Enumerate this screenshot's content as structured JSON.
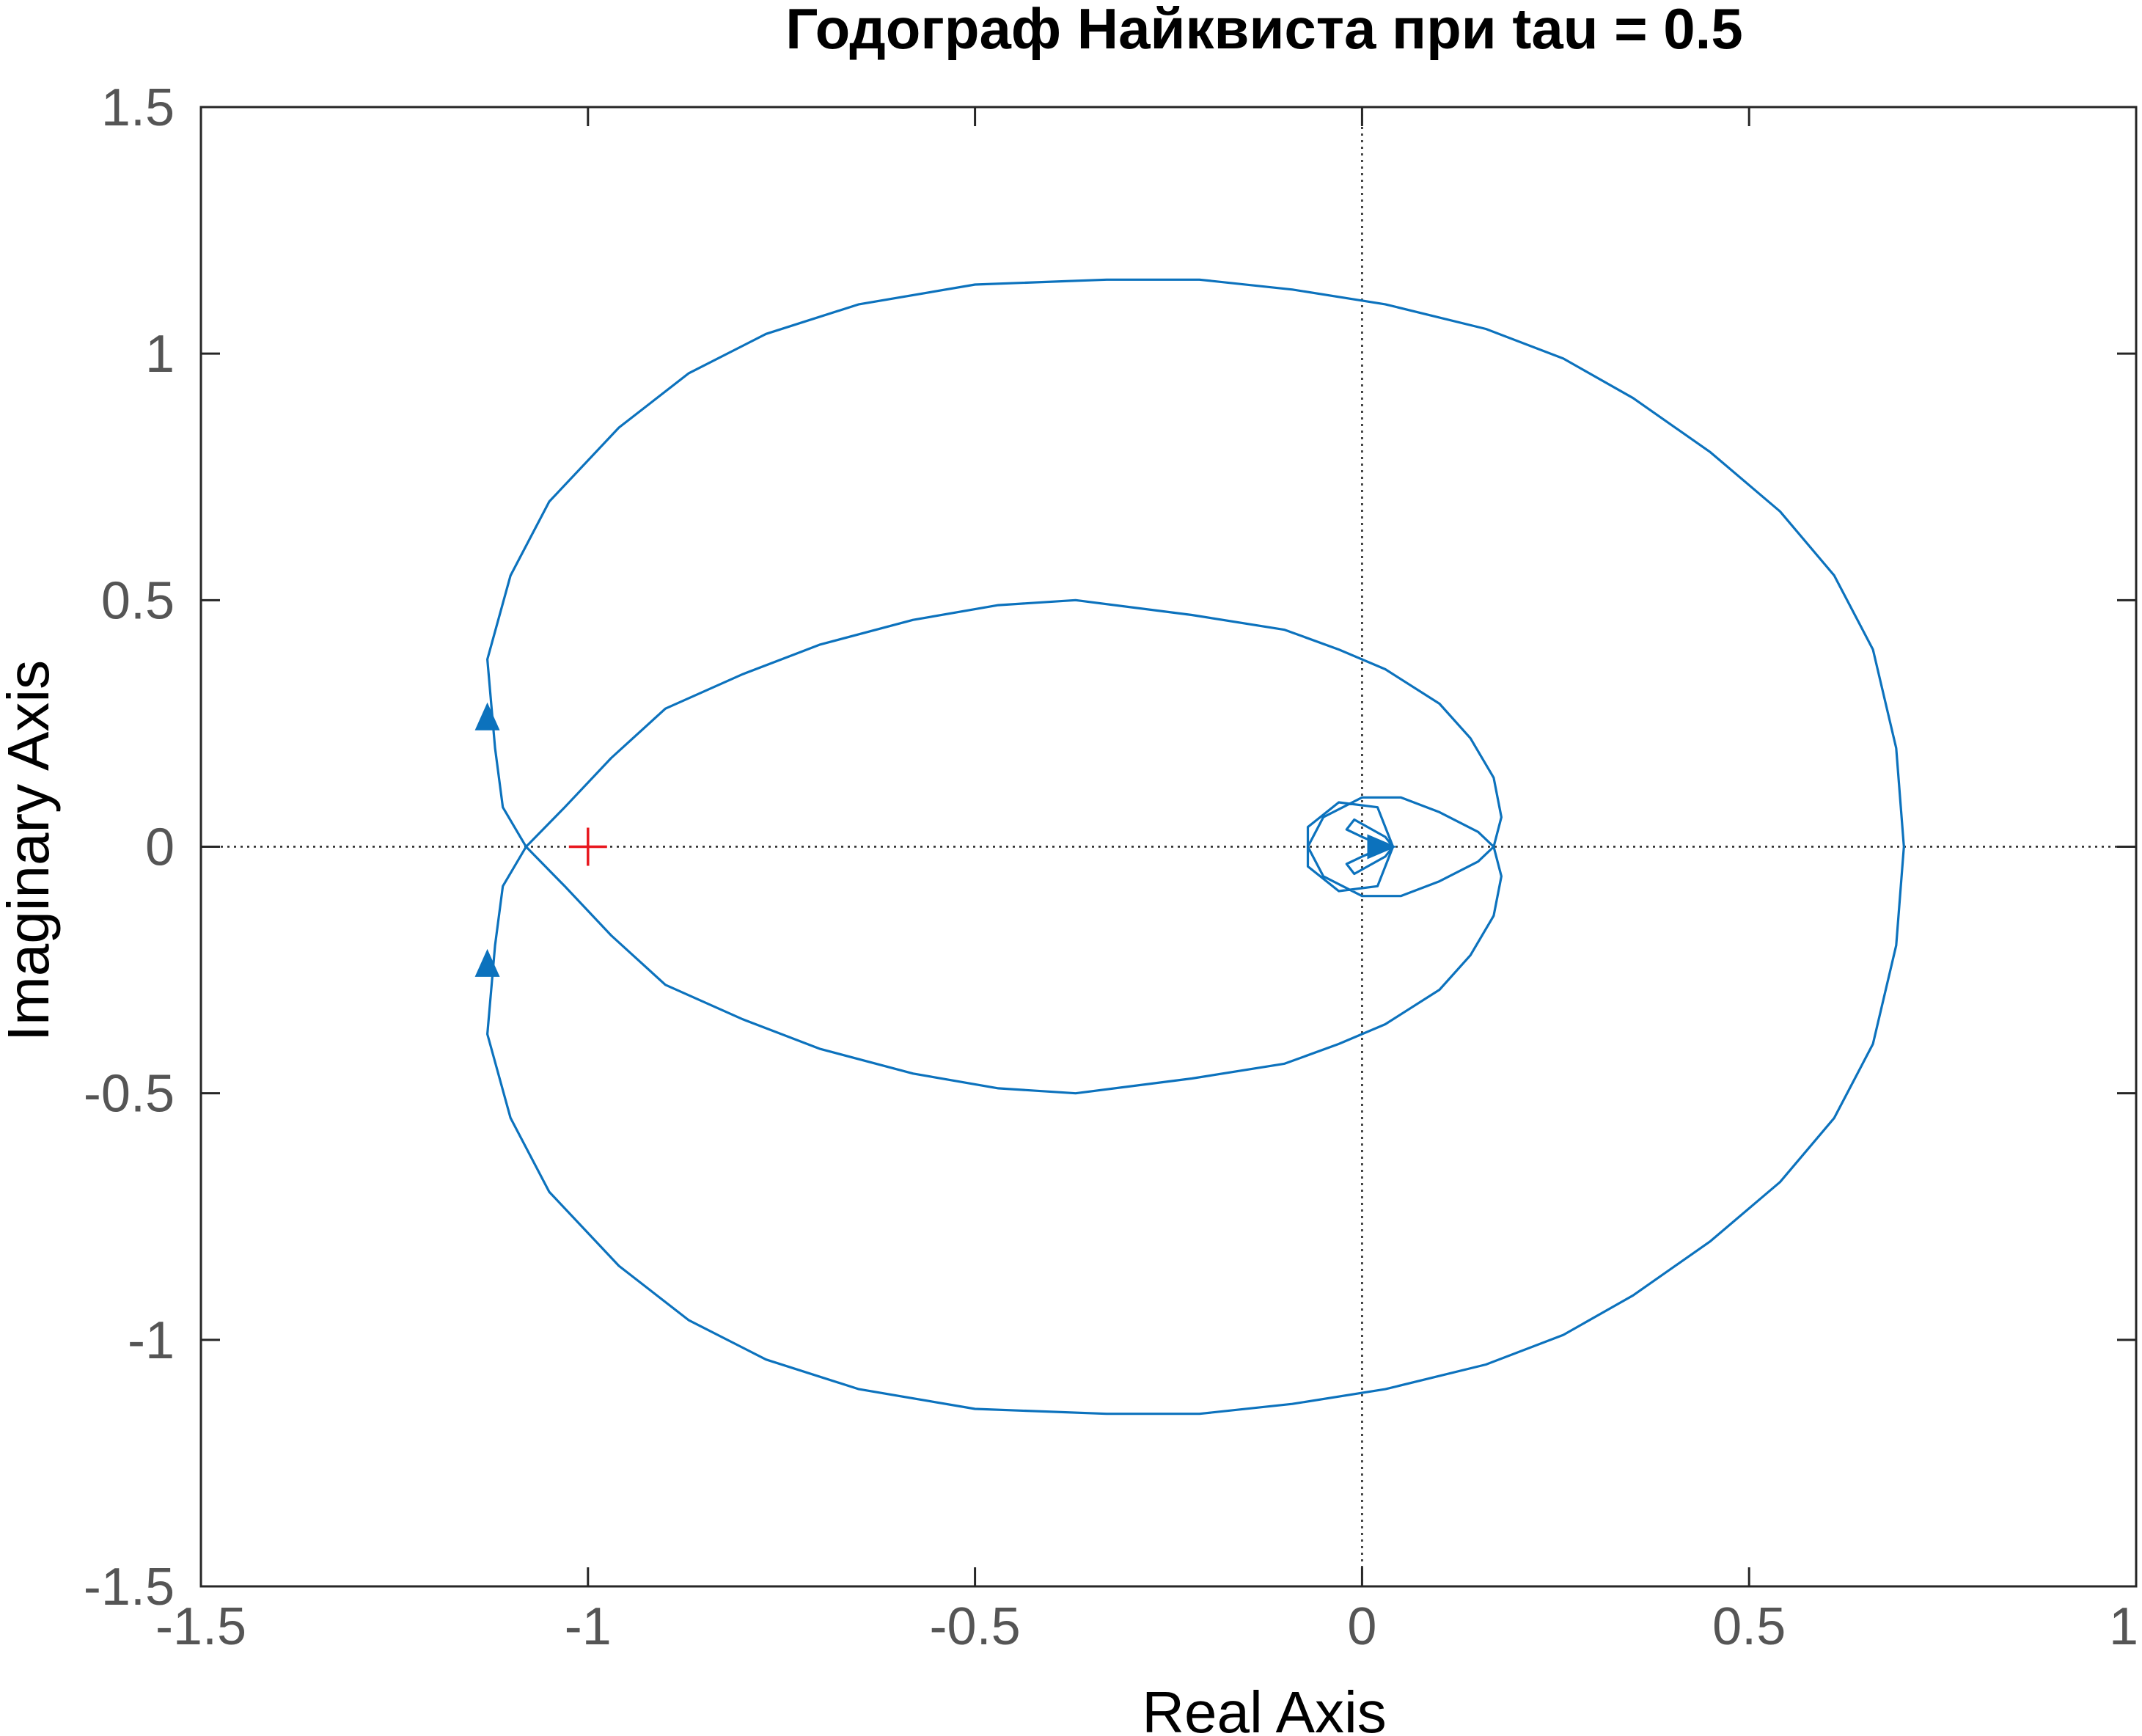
{
  "chart_data": {
    "type": "line",
    "title": "Годограф Найквиста при tau = 0.5",
    "xlabel": "Real Axis",
    "ylabel": "Imaginary Axis",
    "xlim": [
      -1.5,
      1
    ],
    "ylim": [
      -1.5,
      1.5
    ],
    "xticks": [
      -1.5,
      -1,
      -0.5,
      0,
      0.5,
      1
    ],
    "xtick_labels": [
      "-1.5",
      "-1",
      "-0.5",
      "0",
      "0.5",
      "1"
    ],
    "yticks": [
      -1.5,
      -1,
      -0.5,
      0,
      0.5,
      1,
      1.5
    ],
    "ytick_labels": [
      "-1.5",
      "-1",
      "-0.5",
      "0",
      "0.5",
      "1",
      "1.5"
    ],
    "grid": false,
    "reference_lines": {
      "x": 0,
      "y": 0,
      "style": "dotted"
    },
    "critical_point": {
      "x": -1,
      "y": 0,
      "marker": "+",
      "color": "#e8171e"
    },
    "line_color": "#0c72bd",
    "series": [
      {
        "curve": [
          [
            0.03,
            0
          ],
          [
            0.0,
            0.02
          ],
          [
            -0.02,
            0.035
          ],
          [
            -0.01,
            0.055
          ],
          [
            0.03,
            0.02
          ],
          [
            0.04,
            0
          ],
          [
            0.02,
            0.08
          ],
          [
            -0.03,
            0.09
          ],
          [
            -0.07,
            0.04
          ],
          [
            -0.07,
            0
          ],
          [
            -0.05,
            -0.06
          ],
          [
            0.0,
            -0.1
          ],
          [
            0.05,
            -0.1
          ],
          [
            0.1,
            -0.07
          ],
          [
            0.15,
            -0.03
          ],
          [
            0.17,
            0
          ],
          [
            0.18,
            0.06
          ],
          [
            0.17,
            0.14
          ],
          [
            0.14,
            0.22
          ],
          [
            0.1,
            0.29
          ],
          [
            0.03,
            0.36
          ],
          [
            -0.03,
            0.4
          ],
          [
            -0.1,
            0.44
          ],
          [
            -0.22,
            0.47
          ],
          [
            -0.37,
            0.5
          ],
          [
            -0.47,
            0.49
          ],
          [
            -0.58,
            0.46
          ],
          [
            -0.7,
            0.41
          ],
          [
            -0.8,
            0.35
          ],
          [
            -0.9,
            0.28
          ],
          [
            -0.97,
            0.18
          ],
          [
            -1.03,
            0.08
          ],
          [
            -1.08,
            0
          ],
          [
            -1.11,
            -0.08
          ],
          [
            -1.12,
            -0.2
          ],
          [
            -1.13,
            -0.38
          ],
          [
            -1.1,
            -0.55
          ],
          [
            -1.05,
            -0.7
          ],
          [
            -0.96,
            -0.85
          ],
          [
            -0.87,
            -0.96
          ],
          [
            -0.77,
            -1.04
          ],
          [
            -0.65,
            -1.1
          ],
          [
            -0.5,
            -1.14
          ],
          [
            -0.33,
            -1.15
          ],
          [
            -0.21,
            -1.15
          ],
          [
            -0.09,
            -1.13
          ],
          [
            0.03,
            -1.1
          ],
          [
            0.16,
            -1.05
          ],
          [
            0.26,
            -0.99
          ],
          [
            0.35,
            -0.91
          ],
          [
            0.45,
            -0.8
          ],
          [
            0.54,
            -0.68
          ],
          [
            0.61,
            -0.55
          ],
          [
            0.66,
            -0.4
          ],
          [
            0.69,
            -0.2
          ],
          [
            0.7,
            0
          ],
          [
            0.69,
            0.2
          ],
          [
            0.66,
            0.4
          ],
          [
            0.61,
            0.55
          ],
          [
            0.54,
            0.68
          ],
          [
            0.45,
            0.8
          ],
          [
            0.35,
            0.91
          ],
          [
            0.26,
            0.99
          ],
          [
            0.16,
            1.05
          ],
          [
            0.03,
            1.1
          ],
          [
            -0.09,
            1.13
          ],
          [
            -0.21,
            1.15
          ],
          [
            -0.33,
            1.15
          ],
          [
            -0.5,
            1.14
          ],
          [
            -0.65,
            1.1
          ],
          [
            -0.77,
            1.04
          ],
          [
            -0.87,
            0.96
          ],
          [
            -0.96,
            0.85
          ],
          [
            -1.05,
            0.7
          ],
          [
            -1.1,
            0.55
          ],
          [
            -1.13,
            0.38
          ],
          [
            -1.12,
            0.2
          ],
          [
            -1.11,
            0.08
          ],
          [
            -1.08,
            0
          ],
          [
            -1.03,
            -0.08
          ],
          [
            -0.97,
            -0.18
          ],
          [
            -0.9,
            -0.28
          ],
          [
            -0.8,
            -0.35
          ],
          [
            -0.7,
            -0.41
          ],
          [
            -0.58,
            -0.46
          ],
          [
            -0.47,
            -0.49
          ],
          [
            -0.37,
            -0.5
          ],
          [
            -0.22,
            -0.47
          ],
          [
            -0.1,
            -0.44
          ],
          [
            -0.03,
            -0.4
          ],
          [
            0.03,
            -0.36
          ],
          [
            0.1,
            -0.29
          ],
          [
            0.14,
            -0.22
          ],
          [
            0.17,
            -0.14
          ],
          [
            0.18,
            -0.06
          ],
          [
            0.17,
            0
          ],
          [
            0.15,
            0.03
          ],
          [
            0.1,
            0.07
          ],
          [
            0.05,
            0.1
          ],
          [
            0.0,
            0.1
          ],
          [
            -0.05,
            0.06
          ],
          [
            -0.07,
            0
          ],
          [
            -0.07,
            -0.04
          ],
          [
            -0.03,
            -0.09
          ],
          [
            0.02,
            -0.08
          ],
          [
            0.04,
            0
          ],
          [
            0.03,
            -0.02
          ],
          [
            -0.01,
            -0.055
          ],
          [
            -0.02,
            -0.035
          ],
          [
            0.0,
            -0.02
          ],
          [
            0.03,
            0
          ]
        ]
      }
    ],
    "direction_arrows": [
      {
        "x": -1.13,
        "y": 0.26,
        "direction": "up"
      },
      {
        "x": -1.13,
        "y": -0.24,
        "direction": "up"
      },
      {
        "x": 0.02,
        "y": 0,
        "direction": "right"
      }
    ]
  }
}
